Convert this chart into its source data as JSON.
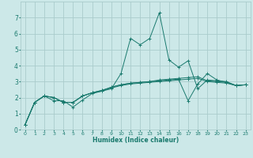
{
  "title": "",
  "xlabel": "Humidex (Indice chaleur)",
  "ylabel": "",
  "background_color": "#cce8e8",
  "grid_color": "#aacccc",
  "line_color": "#1a7a6e",
  "marker_color": "#1a7a6e",
  "xlim": [
    -0.5,
    23.5
  ],
  "ylim": [
    0,
    8
  ],
  "xticks": [
    0,
    1,
    2,
    3,
    4,
    5,
    6,
    7,
    8,
    9,
    10,
    11,
    12,
    13,
    14,
    15,
    16,
    17,
    18,
    19,
    20,
    21,
    22,
    23
  ],
  "yticks": [
    0,
    1,
    2,
    3,
    4,
    5,
    6,
    7
  ],
  "series": [
    [
      0.3,
      1.7,
      2.1,
      1.8,
      1.8,
      1.4,
      1.85,
      2.25,
      2.4,
      2.55,
      3.5,
      5.7,
      5.3,
      5.7,
      7.3,
      4.35,
      3.9,
      4.3,
      2.55,
      3.1,
      3.05,
      3.0,
      2.75,
      2.8
    ],
    [
      0.3,
      1.7,
      2.1,
      2.0,
      1.7,
      1.7,
      2.1,
      2.3,
      2.4,
      2.65,
      2.8,
      2.9,
      2.95,
      3.0,
      3.05,
      3.1,
      3.15,
      1.8,
      2.85,
      3.5,
      3.1,
      2.95,
      2.75,
      2.8
    ],
    [
      0.3,
      1.7,
      2.1,
      2.0,
      1.7,
      1.7,
      2.1,
      2.3,
      2.45,
      2.65,
      2.8,
      2.9,
      2.95,
      3.0,
      3.1,
      3.15,
      3.2,
      3.25,
      3.3,
      3.05,
      3.0,
      2.95,
      2.75,
      2.8
    ],
    [
      0.3,
      1.7,
      2.1,
      2.0,
      1.7,
      1.7,
      2.1,
      2.3,
      2.45,
      2.6,
      2.75,
      2.85,
      2.9,
      2.95,
      3.0,
      3.05,
      3.1,
      3.15,
      3.2,
      3.0,
      2.95,
      2.9,
      2.75,
      2.8
    ]
  ]
}
